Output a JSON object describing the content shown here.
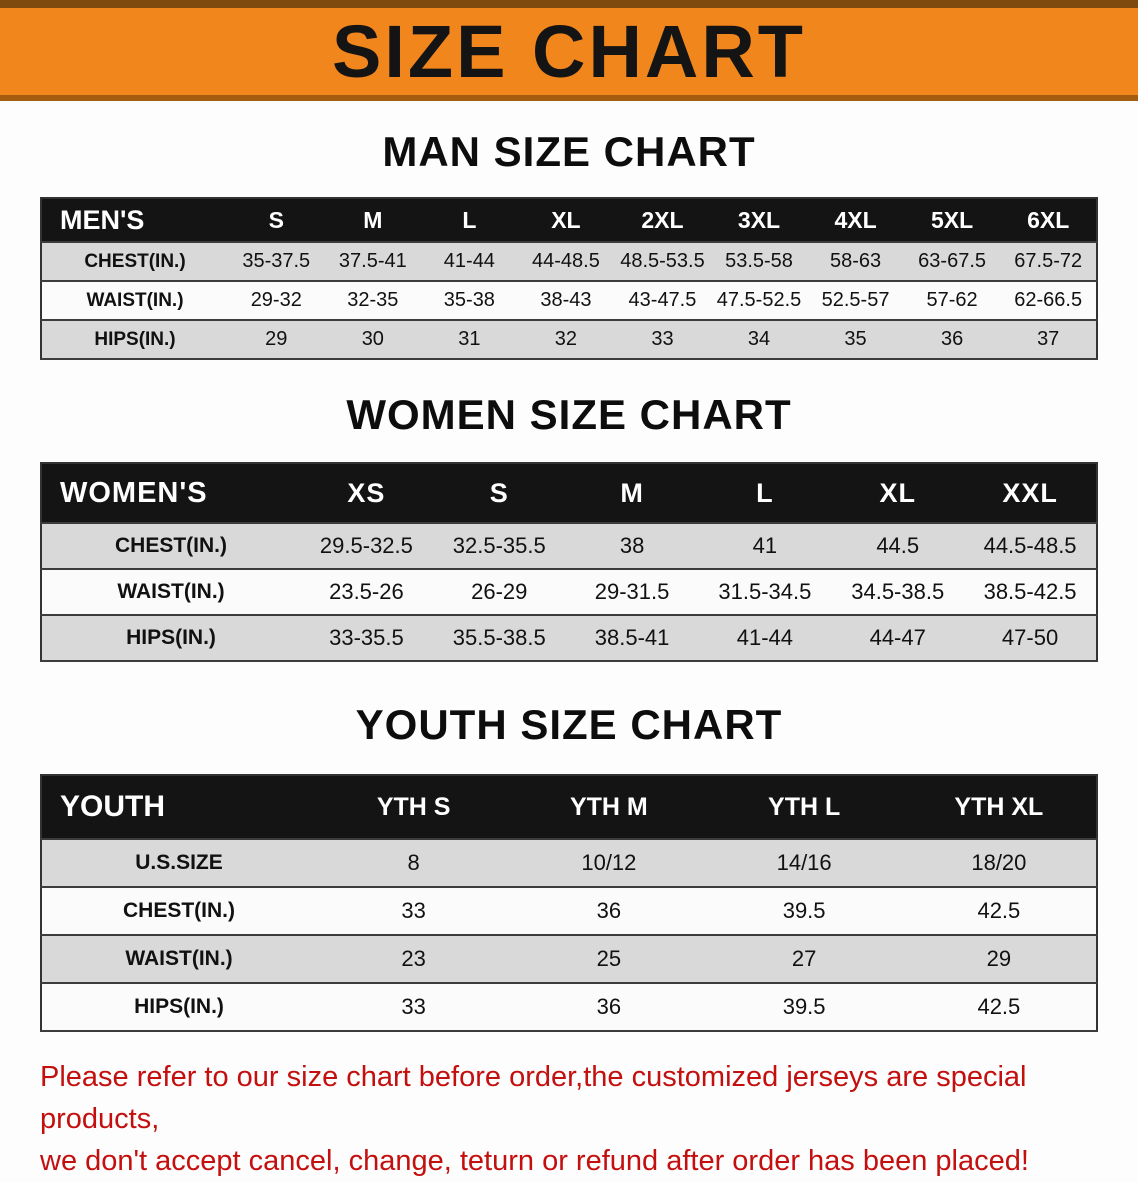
{
  "banner": {
    "title": "SIZE CHART"
  },
  "men": {
    "heading": "MAN SIZE CHART",
    "table": {
      "header": [
        "MEN'S",
        "S",
        "M",
        "L",
        "XL",
        "2XL",
        "3XL",
        "4XL",
        "5XL",
        "6XL"
      ],
      "rows": [
        [
          "CHEST(IN.)",
          "35-37.5",
          "37.5-41",
          "41-44",
          "44-48.5",
          "48.5-53.5",
          "53.5-58",
          "58-63",
          "63-67.5",
          "67.5-72"
        ],
        [
          "WAIST(IN.)",
          "29-32",
          "32-35",
          "35-38",
          "38-43",
          "43-47.5",
          "47.5-52.5",
          "52.5-57",
          "57-62",
          "62-66.5"
        ],
        [
          "HIPS(IN.)",
          "29",
          "30",
          "31",
          "32",
          "33",
          "34",
          "35",
          "36",
          "37"
        ]
      ]
    }
  },
  "women": {
    "heading": "WOMEN SIZE CHART",
    "table": {
      "header": [
        "WOMEN'S",
        "XS",
        "S",
        "M",
        "L",
        "XL",
        "XXL"
      ],
      "rows": [
        [
          "CHEST(IN.)",
          "29.5-32.5",
          "32.5-35.5",
          "38",
          "41",
          "44.5",
          "44.5-48.5"
        ],
        [
          "WAIST(IN.)",
          "23.5-26",
          "26-29",
          "29-31.5",
          "31.5-34.5",
          "34.5-38.5",
          "38.5-42.5"
        ],
        [
          "HIPS(IN.)",
          "33-35.5",
          "35.5-38.5",
          "38.5-41",
          "41-44",
          "44-47",
          "47-50"
        ]
      ]
    }
  },
  "youth": {
    "heading": "YOUTH SIZE CHART",
    "table": {
      "header": [
        "YOUTH",
        "YTH S",
        "YTH M",
        "YTH L",
        "YTH XL"
      ],
      "rows": [
        [
          "U.S.SIZE",
          "8",
          "10/12",
          "14/16",
          "18/20"
        ],
        [
          "CHEST(IN.)",
          "33",
          "36",
          "39.5",
          "42.5"
        ],
        [
          "WAIST(IN.)",
          "23",
          "25",
          "27",
          "29"
        ],
        [
          "HIPS(IN.)",
          "33",
          "36",
          "39.5",
          "42.5"
        ]
      ]
    }
  },
  "disclaimer": {
    "line1": "Please refer to our size chart before order,the customized jerseys are special products,",
    "line2": "we don't accept cancel, change, teturn or refund after order has been placed!"
  },
  "colors": {
    "banner_bg": "#f1861d",
    "table_header_bg": "#141414",
    "row_alt_bg": "#d9d9d9",
    "disclaimer_red": "#c40f0f"
  }
}
